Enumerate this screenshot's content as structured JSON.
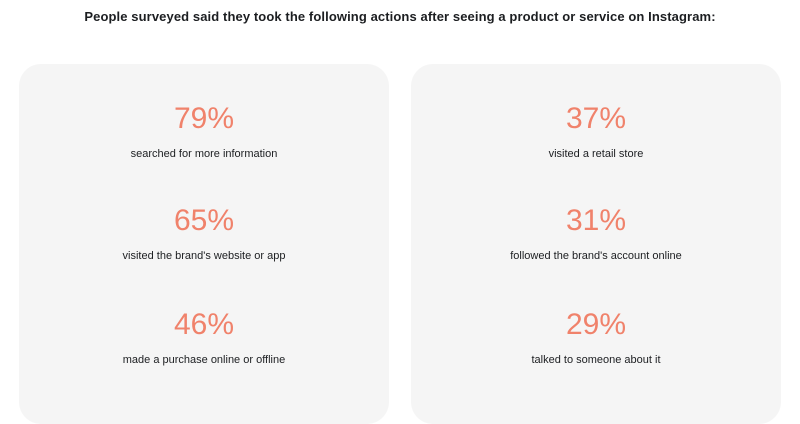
{
  "heading": "People surveyed said they took the following actions after seeing a product or service on Instagram:",
  "colors": {
    "accent": "#f0826b",
    "card_background": "#f5f5f5",
    "text": "#1c1e21"
  },
  "columns": [
    {
      "stats": [
        {
          "value": "79%",
          "label": "searched for more information"
        },
        {
          "value": "65%",
          "label": "visited the brand's website or app"
        },
        {
          "value": "46%",
          "label": "made a purchase online or offline"
        }
      ]
    },
    {
      "stats": [
        {
          "value": "37%",
          "label": "visited a retail store"
        },
        {
          "value": "31%",
          "label": "followed the brand's account online"
        },
        {
          "value": "29%",
          "label": "talked to someone about it"
        }
      ]
    }
  ]
}
